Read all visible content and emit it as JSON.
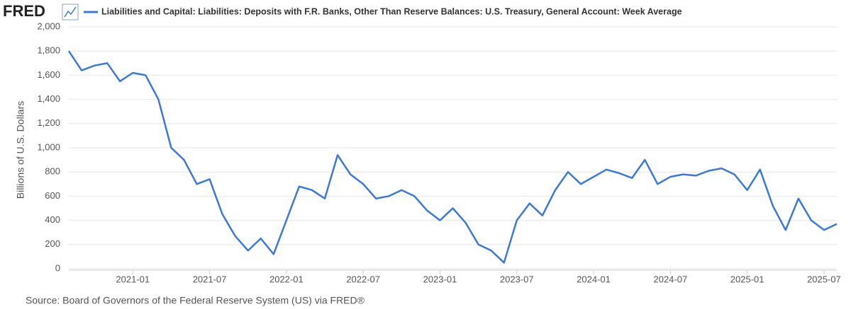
{
  "brand": "FRED",
  "chart_data": {
    "type": "line",
    "y_label": "Billions of U.S. Dollars",
    "source": "Source: Board of Governors of the Federal Reserve System (US) via FRED®",
    "x": [
      "2020-08",
      "2020-09",
      "2020-10",
      "2020-11",
      "2020-12",
      "2021-01",
      "2021-02",
      "2021-03",
      "2021-04",
      "2021-05",
      "2021-06",
      "2021-07",
      "2021-08",
      "2021-09",
      "2021-10",
      "2021-11",
      "2021-12",
      "2022-01",
      "2022-02",
      "2022-03",
      "2022-04",
      "2022-05",
      "2022-06",
      "2022-07",
      "2022-08",
      "2022-09",
      "2022-10",
      "2022-11",
      "2022-12",
      "2023-01",
      "2023-02",
      "2023-03",
      "2023-04",
      "2023-05",
      "2023-06",
      "2023-07",
      "2023-08",
      "2023-09",
      "2023-10",
      "2023-11",
      "2023-12",
      "2024-01",
      "2024-02",
      "2024-03",
      "2024-04",
      "2024-05",
      "2024-06",
      "2024-07",
      "2024-08",
      "2024-09",
      "2024-10",
      "2024-11",
      "2024-12",
      "2025-01",
      "2025-02",
      "2025-03",
      "2025-04",
      "2025-05",
      "2025-06",
      "2025-07",
      "2025-08"
    ],
    "series": [
      {
        "name": "Liabilities and Capital: Liabilities: Deposits with F.R. Banks, Other Than Reserve Balances: U.S. Treasury, General Account: Week Average",
        "color": "#3c78d8",
        "values": [
          1800,
          1640,
          1680,
          1700,
          1550,
          1620,
          1600,
          1400,
          1000,
          900,
          700,
          740,
          450,
          270,
          150,
          250,
          120,
          400,
          680,
          650,
          580,
          940,
          780,
          700,
          580,
          600,
          650,
          600,
          480,
          400,
          500,
          380,
          200,
          150,
          50,
          400,
          540,
          440,
          650,
          800,
          700,
          760,
          820,
          790,
          750,
          900,
          700,
          760,
          780,
          770,
          810,
          830,
          780,
          650,
          820,
          520,
          320,
          580,
          400,
          320,
          370
        ]
      }
    ],
    "xlim": [
      "2020-08",
      "2025-08"
    ],
    "xticks": [
      "2021-01",
      "2021-07",
      "2022-01",
      "2022-07",
      "2023-01",
      "2023-07",
      "2024-01",
      "2024-07",
      "2025-01",
      "2025-07"
    ],
    "ylim": [
      0,
      2000
    ],
    "yticks": [
      0,
      200,
      400,
      600,
      800,
      {
        "value": 1000,
        "label": "1,000"
      },
      {
        "value": 1200,
        "label": "1,200"
      },
      {
        "value": 1400,
        "label": "1,400"
      },
      {
        "value": 1600,
        "label": "1,600"
      },
      {
        "value": 1800,
        "label": "1,800"
      },
      {
        "value": 2000,
        "label": "2,000"
      }
    ],
    "grid": true
  }
}
